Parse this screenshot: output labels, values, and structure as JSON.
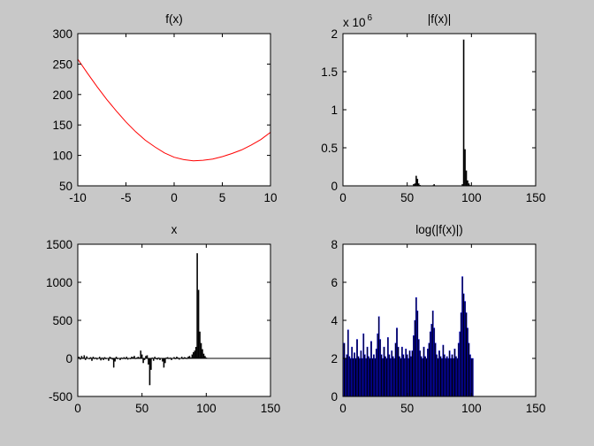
{
  "colors": {
    "background": "#c8c8c8",
    "axes_bg": "#ffffff",
    "line_red": "#ff0000",
    "bar_fill": "#000000",
    "bar_edge": "#0000ff"
  },
  "chart_data": [
    {
      "type": "line",
      "title": "f(x)",
      "xlim": [
        -10,
        10
      ],
      "ylim": [
        50,
        300
      ],
      "xticks": [
        "-10",
        "-5",
        "0",
        "5",
        "10"
      ],
      "yticks": [
        "50",
        "100",
        "150",
        "200",
        "250",
        "300"
      ],
      "series": [
        {
          "color": "#ff0000",
          "x": [
            -10,
            -9,
            -8,
            -7,
            -6,
            -5,
            -4,
            -3,
            -2,
            -1,
            0,
            1,
            2,
            3,
            4,
            5,
            6,
            7,
            8,
            9,
            10
          ],
          "y": [
            258,
            235,
            213,
            192,
            173,
            155,
            139,
            125,
            114,
            104,
            97,
            93,
            91,
            92,
            94,
            98,
            103,
            109,
            117,
            126,
            138
          ]
        }
      ]
    },
    {
      "type": "bar",
      "title": "|f(x)|",
      "exponent_label": "x 10",
      "exponent_power": "6",
      "xlim": [
        0,
        150
      ],
      "ylim": [
        0,
        2
      ],
      "xticks": [
        "0",
        "50",
        "100",
        "150"
      ],
      "yticks": [
        "0",
        "0.5",
        "1",
        "1.5",
        "2"
      ],
      "x": [
        1,
        2,
        3,
        4,
        5,
        6,
        7,
        8,
        9,
        10,
        11,
        12,
        13,
        14,
        15,
        16,
        17,
        18,
        19,
        20,
        21,
        22,
        23,
        24,
        25,
        26,
        27,
        28,
        29,
        30,
        31,
        32,
        33,
        34,
        35,
        36,
        37,
        38,
        39,
        40,
        41,
        42,
        43,
        44,
        45,
        46,
        47,
        48,
        49,
        50,
        51,
        52,
        53,
        54,
        55,
        56,
        57,
        58,
        59,
        60,
        61,
        62,
        63,
        64,
        65,
        66,
        67,
        68,
        69,
        70,
        71,
        72,
        73,
        74,
        75,
        76,
        77,
        78,
        79,
        80,
        81,
        82,
        83,
        84,
        85,
        86,
        87,
        88,
        89,
        90,
        91,
        92,
        93,
        94,
        95,
        96,
        97,
        98,
        99,
        100,
        101
      ],
      "values": [
        0.001,
        0.002,
        0.001,
        0.002,
        0.001,
        0.001,
        0.002,
        0.001,
        0.001,
        0.002,
        0.001,
        0.002,
        0.001,
        0.001,
        0.002,
        0.001,
        0.001,
        0.002,
        0.001,
        0.001,
        0.002,
        0.001,
        0.001,
        0.002,
        0.001,
        0.002,
        0.004,
        0.001,
        0.002,
        0.001,
        0.001,
        0.002,
        0.001,
        0.002,
        0.001,
        0.001,
        0.002,
        0.001,
        0.001,
        0.002,
        0.001,
        0.002,
        0.001,
        0.001,
        0.002,
        0.001,
        0.001,
        0.002,
        0.001,
        0.001,
        0.002,
        0.001,
        0.002,
        0.004,
        0.02,
        0.03,
        0.13,
        0.09,
        0.03,
        0.01,
        0.003,
        0.002,
        0.001,
        0.002,
        0.001,
        0.001,
        0.002,
        0.003,
        0.004,
        0.006,
        0.02,
        0.005,
        0.002,
        0.001,
        0.002,
        0.001,
        0.001,
        0.002,
        0.001,
        0.001,
        0.002,
        0.001,
        0.002,
        0.001,
        0.001,
        0.002,
        0.001,
        0.002,
        0.001,
        0.001,
        0.002,
        0.004,
        0.02,
        1.92,
        0.48,
        0.2,
        0.07,
        0.03,
        0.008,
        0.003,
        0.001
      ]
    },
    {
      "type": "bar",
      "title": "x",
      "xlim": [
        0,
        150
      ],
      "ylim": [
        -500,
        1500
      ],
      "xticks": [
        "0",
        "50",
        "100",
        "150"
      ],
      "yticks": [
        "-500",
        "0",
        "500",
        "1000",
        "1500"
      ],
      "x": [
        1,
        2,
        3,
        4,
        5,
        6,
        7,
        8,
        9,
        10,
        11,
        12,
        13,
        14,
        15,
        16,
        17,
        18,
        19,
        20,
        21,
        22,
        23,
        24,
        25,
        26,
        27,
        28,
        29,
        30,
        31,
        32,
        33,
        34,
        35,
        36,
        37,
        38,
        39,
        40,
        41,
        42,
        43,
        44,
        45,
        46,
        47,
        48,
        49,
        50,
        51,
        52,
        53,
        54,
        55,
        56,
        57,
        58,
        59,
        60,
        61,
        62,
        63,
        64,
        65,
        66,
        67,
        68,
        69,
        70,
        71,
        72,
        73,
        74,
        75,
        76,
        77,
        78,
        79,
        80,
        81,
        82,
        83,
        84,
        85,
        86,
        87,
        88,
        89,
        90,
        91,
        92,
        93,
        94,
        95,
        96,
        97,
        98,
        99,
        100,
        101
      ],
      "values": [
        20,
        -15,
        30,
        10,
        40,
        -20,
        25,
        5,
        -10,
        15,
        -30,
        20,
        -5,
        10,
        -15,
        5,
        20,
        -25,
        10,
        -20,
        15,
        -10,
        5,
        -30,
        20,
        10,
        -15,
        -120,
        -40,
        20,
        -10,
        5,
        -20,
        10,
        -5,
        15,
        -10,
        20,
        -15,
        5,
        -10,
        20,
        15,
        30,
        -5,
        10,
        20,
        10,
        100,
        50,
        -60,
        -20,
        30,
        40,
        -80,
        -350,
        -150,
        10,
        -30,
        20,
        -10,
        -15,
        10,
        -20,
        5,
        -40,
        -120,
        -60,
        10,
        15,
        -5,
        10,
        -20,
        5,
        15,
        -10,
        20,
        10,
        -15,
        5,
        20,
        -10,
        15,
        10,
        -5,
        20,
        30,
        10,
        50,
        80,
        100,
        150,
        1380,
        900,
        350,
        200,
        120,
        60,
        30,
        10,
        5
      ]
    },
    {
      "type": "bar",
      "title": "log(|f(x)|)",
      "xlim": [
        0,
        150
      ],
      "ylim": [
        0,
        8
      ],
      "xticks": [
        "0",
        "50",
        "100",
        "150"
      ],
      "yticks": [
        "0",
        "2",
        "4",
        "6",
        "8"
      ],
      "x": [
        1,
        2,
        3,
        4,
        5,
        6,
        7,
        8,
        9,
        10,
        11,
        12,
        13,
        14,
        15,
        16,
        17,
        18,
        19,
        20,
        21,
        22,
        23,
        24,
        25,
        26,
        27,
        28,
        29,
        30,
        31,
        32,
        33,
        34,
        35,
        36,
        37,
        38,
        39,
        40,
        41,
        42,
        43,
        44,
        45,
        46,
        47,
        48,
        49,
        50,
        51,
        52,
        53,
        54,
        55,
        56,
        57,
        58,
        59,
        60,
        61,
        62,
        63,
        64,
        65,
        66,
        67,
        68,
        69,
        70,
        71,
        72,
        73,
        74,
        75,
        76,
        77,
        78,
        79,
        80,
        81,
        82,
        83,
        84,
        85,
        86,
        87,
        88,
        89,
        90,
        91,
        92,
        93,
        94,
        95,
        96,
        97,
        98,
        99,
        100,
        101
      ],
      "values": [
        2.8,
        2.0,
        2.2,
        3.5,
        2.1,
        2.0,
        2.6,
        2.0,
        2.3,
        2.0,
        3.0,
        2.1,
        2.0,
        2.4,
        2.0,
        3.3,
        2.2,
        2.0,
        2.6,
        2.1,
        2.0,
        2.9,
        2.0,
        2.2,
        2.0,
        2.5,
        3.3,
        4.2,
        3.0,
        2.2,
        2.0,
        2.6,
        2.1,
        2.0,
        3.1,
        2.2,
        2.0,
        2.4,
        2.1,
        2.0,
        2.8,
        3.6,
        2.6,
        2.1,
        2.0,
        2.6,
        2.2,
        2.0,
        2.5,
        2.2,
        2.0,
        2.4,
        2.1,
        2.4,
        3.2,
        4.0,
        5.2,
        4.5,
        3.0,
        2.4,
        2.1,
        2.0,
        2.6,
        2.1,
        2.0,
        2.5,
        2.8,
        3.4,
        3.8,
        4.5,
        3.6,
        2.8,
        2.2,
        2.0,
        2.4,
        2.1,
        2.0,
        2.7,
        2.2,
        2.0,
        2.1,
        2.0,
        2.4,
        2.0,
        2.2,
        2.0,
        2.5,
        2.1,
        2.0,
        2.8,
        3.4,
        4.4,
        6.3,
        5.4,
        5.0,
        4.4,
        3.6,
        2.8,
        2.2,
        2.0,
        2.0
      ]
    }
  ]
}
